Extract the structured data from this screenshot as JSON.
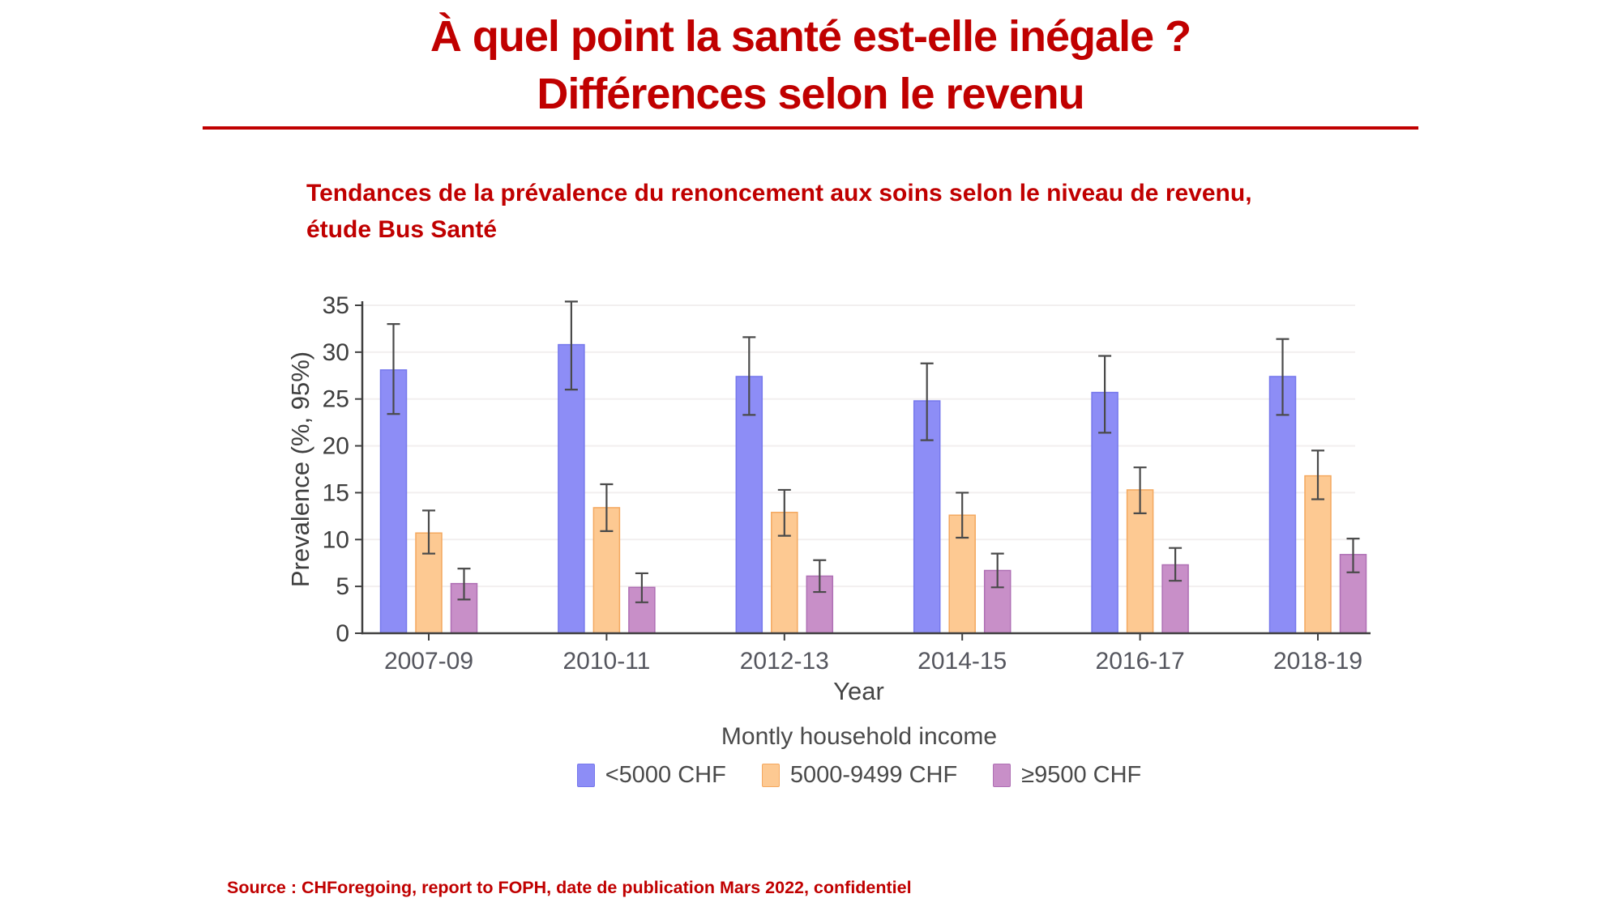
{
  "slide": {
    "title_line1": "À quel point la santé est-elle inégale ?",
    "title_line2": "Différences selon le revenu",
    "subtitle_line1": "Tendances de la prévalence du renoncement aux soins selon le niveau de revenu,",
    "subtitle_line2": "étude Bus Santé",
    "source": "Source : CHForegoing, report to FOPH, date de publication Mars 2022, confidentiel",
    "accent_color": "#C00000"
  },
  "chart_data": {
    "type": "bar",
    "title": "",
    "xlabel": "Year",
    "ylabel": "Prevalence (%, 95%)",
    "ylim": [
      0,
      35
    ],
    "ytick_step": 5,
    "grid": true,
    "error_bars": true,
    "legend_title": "Montly household income",
    "legend_position": "bottom",
    "categories": [
      "2007-09",
      "2010-11",
      "2012-13",
      "2014-15",
      "2016-17",
      "2018-19"
    ],
    "series": [
      {
        "name": "<5000 CHF",
        "color": "#8D8DF6",
        "border_color": "#7678EC",
        "values": [
          28.1,
          30.8,
          27.4,
          24.8,
          25.7,
          27.4
        ],
        "ci_low": [
          23.4,
          26.0,
          23.3,
          20.6,
          21.4,
          23.3
        ],
        "ci_high": [
          33.0,
          35.4,
          31.6,
          28.8,
          29.6,
          31.4
        ]
      },
      {
        "name": "5000-9499 CHF",
        "color": "#FDC992",
        "border_color": "#F4A85F",
        "values": [
          10.7,
          13.4,
          12.9,
          12.6,
          15.3,
          16.8
        ],
        "ci_low": [
          8.5,
          10.9,
          10.4,
          10.2,
          12.8,
          14.3
        ],
        "ci_high": [
          13.1,
          15.9,
          15.3,
          15.0,
          17.7,
          19.5
        ]
      },
      {
        "name": "≥9500 CHF",
        "color": "#C88FC8",
        "border_color": "#AF6FB4",
        "values": [
          5.3,
          4.9,
          6.1,
          6.7,
          7.3,
          8.4
        ],
        "ci_low": [
          3.6,
          3.3,
          4.4,
          4.9,
          5.6,
          6.5
        ],
        "ci_high": [
          6.9,
          6.4,
          7.8,
          8.5,
          9.1,
          10.1
        ]
      }
    ]
  }
}
